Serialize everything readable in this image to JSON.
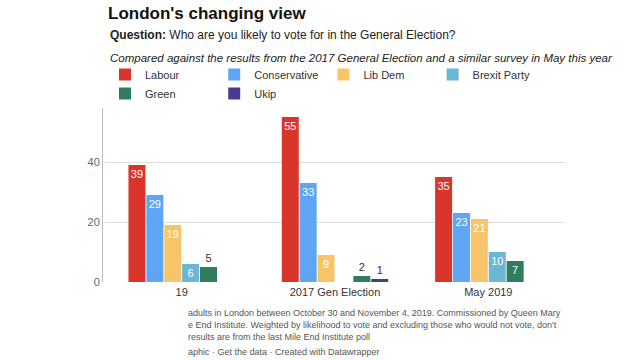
{
  "chart_data": {
    "type": "bar",
    "title": "London's changing view",
    "subtitle": "Question: Who are you likely to vote for in the General Election?",
    "annotations": [
      "Compared against the results from the 2017 General Election and a similar survey in May this year",
      "adults in London between October 30 and November 4, 2019. Commissioned by Queen Mary",
      "e End Institute. Weighted by likelihood to vote and excluding those who would not vote, don't",
      "results are from the last Mile End Institute poll",
      "aphic · Get the data · Created with Datawrapper"
    ],
    "categories": [
      "19",
      "2017 Gen Election",
      "May 2019"
    ],
    "series": [
      {
        "name": "Labour",
        "color": "#d9352a",
        "values": [
          39,
          55,
          35
        ]
      },
      {
        "name": "Conservative",
        "color": "#5ea5f3",
        "values": [
          29,
          33,
          23
        ]
      },
      {
        "name": "Lib Dem",
        "color": "#f8c46a",
        "values": [
          19,
          9,
          21
        ]
      },
      {
        "name": "Brexit Party",
        "color": "#6cb6d6",
        "values": [
          6,
          null,
          10
        ]
      },
      {
        "name": "Green",
        "color": "#2f7d5d",
        "values": [
          5,
          2,
          7
        ]
      },
      {
        "name": "Ukip",
        "color": "#4b3b8e",
        "values": [
          null,
          1,
          null
        ]
      }
    ],
    "ylim": [
      0,
      58
    ],
    "yticks": [
      0,
      20,
      40
    ],
    "grid": true,
    "legend": "top",
    "data_labels": true
  }
}
